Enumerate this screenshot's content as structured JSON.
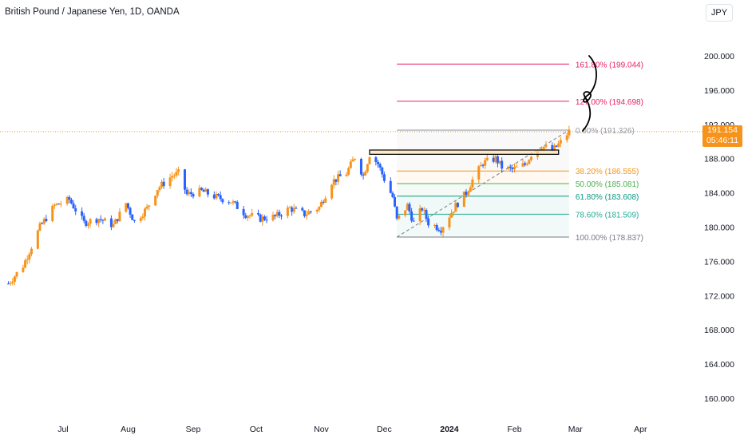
{
  "header": {
    "title": "British Pound / Japanese Yen, 1D, OANDA",
    "currency": "JPY"
  },
  "last_price": {
    "value": "191.154",
    "countdown": "05:46:11"
  },
  "colors": {
    "up": "#f7931a",
    "down": "#2962ff",
    "current_line": "#f7931a"
  },
  "chart_data": {
    "type": "candlestick",
    "symbol": "GBPJPY",
    "y_ticks": [
      "160.000",
      "164.000",
      "168.000",
      "172.000",
      "176.000",
      "180.000",
      "184.000",
      "188.000",
      "192.000",
      "196.000",
      "200.000"
    ],
    "ylim": [
      158.0,
      204.5
    ],
    "x_ticks": [
      {
        "label": "Jul",
        "date": "2023-07-01"
      },
      {
        "label": "Aug",
        "date": "2023-08-01"
      },
      {
        "label": "Sep",
        "date": "2023-09-01"
      },
      {
        "label": "Oct",
        "date": "2023-10-01"
      },
      {
        "label": "Nov",
        "date": "2023-11-01"
      },
      {
        "label": "Dec",
        "date": "2023-12-01"
      },
      {
        "label": "2024",
        "date": "2024-01-01"
      },
      {
        "label": "Feb",
        "date": "2024-02-01"
      },
      {
        "label": "Mar",
        "date": "2024-03-01"
      },
      {
        "label": "Apr",
        "date": "2024-04-01"
      }
    ],
    "close_path": [
      [
        "2023-06-05",
        173.4
      ],
      [
        "2023-06-12",
        175.5
      ],
      [
        "2023-06-20",
        180.0
      ],
      [
        "2023-06-27",
        182.5
      ],
      [
        "2023-07-04",
        183.2
      ],
      [
        "2023-07-11",
        180.5
      ],
      [
        "2023-07-18",
        181.0
      ],
      [
        "2023-07-25",
        180.2
      ],
      [
        "2023-07-28",
        181.5
      ],
      [
        "2023-07-31",
        182.8
      ],
      [
        "2023-08-04",
        180.6
      ],
      [
        "2023-08-10",
        182.2
      ],
      [
        "2023-08-15",
        184.5
      ],
      [
        "2023-08-22",
        186.0
      ],
      [
        "2023-08-25",
        186.3
      ],
      [
        "2023-08-29",
        183.8
      ],
      [
        "2023-09-05",
        184.2
      ],
      [
        "2023-09-12",
        183.5
      ],
      [
        "2023-09-19",
        183.0
      ],
      [
        "2023-09-26",
        181.5
      ],
      [
        "2023-10-03",
        181.0
      ],
      [
        "2023-10-10",
        181.2
      ],
      [
        "2023-10-17",
        182.2
      ],
      [
        "2023-10-24",
        181.5
      ],
      [
        "2023-10-31",
        182.3
      ],
      [
        "2023-11-06",
        185.3
      ],
      [
        "2023-11-13",
        186.3
      ],
      [
        "2023-11-17",
        188.2
      ],
      [
        "2023-11-21",
        186.0
      ],
      [
        "2023-11-24",
        188.5
      ],
      [
        "2023-11-28",
        187.4
      ],
      [
        "2023-12-01",
        185.6
      ],
      [
        "2023-12-05",
        183.5
      ],
      [
        "2023-12-07",
        180.8
      ],
      [
        "2023-12-12",
        182.5
      ],
      [
        "2023-12-15",
        180.5
      ],
      [
        "2023-12-19",
        182.2
      ],
      [
        "2023-12-22",
        180.5
      ],
      [
        "2023-12-28",
        179.8
      ],
      [
        "2024-01-04",
        182.5
      ],
      [
        "2024-01-09",
        184.0
      ],
      [
        "2024-01-12",
        185.5
      ],
      [
        "2024-01-17",
        187.5
      ],
      [
        "2024-01-23",
        188.0
      ],
      [
        "2024-01-26",
        187.0
      ],
      [
        "2024-01-31",
        186.7
      ],
      [
        "2024-02-06",
        187.3
      ],
      [
        "2024-02-09",
        188.5
      ],
      [
        "2024-02-14",
        189.5
      ],
      [
        "2024-02-19",
        188.9
      ],
      [
        "2024-02-23",
        189.9
      ],
      [
        "2024-02-27",
        191.154
      ]
    ],
    "annotations": [
      {
        "text": "British Pound / Japanese Yen, 1D, OANDA"
      }
    ],
    "fibonacci": {
      "anchor_low": {
        "date": "2023-12-07",
        "price": 178.837
      },
      "anchor_high": {
        "date": "2024-02-27",
        "price": 191.326
      },
      "levels": [
        {
          "label": "161.80% (199.044)",
          "price": 199.044,
          "color": "#e91e63"
        },
        {
          "label": "127.00% (194.698)",
          "price": 194.698,
          "color": "#e91e63"
        },
        {
          "label": "0.00% (191.326)",
          "price": 191.326,
          "color": "#9598a1"
        },
        {
          "label": "38.20% (186.555)",
          "price": 186.555,
          "color": "#f7931a"
        },
        {
          "label": "50.00% (185.081)",
          "price": 185.081,
          "color": "#4caf50"
        },
        {
          "label": "61.80% (183.608)",
          "price": 183.608,
          "color": "#089981"
        },
        {
          "label": "78.60% (181.509)",
          "price": 181.509,
          "color": "#22ab94"
        },
        {
          "label": "100.00% (178.837)",
          "price": 178.837,
          "color": "#787b86"
        }
      ]
    },
    "resistance_zone": {
      "from": "2023-11-24",
      "to": "2024-02-22",
      "low": 188.5,
      "high": 189.0
    }
  }
}
